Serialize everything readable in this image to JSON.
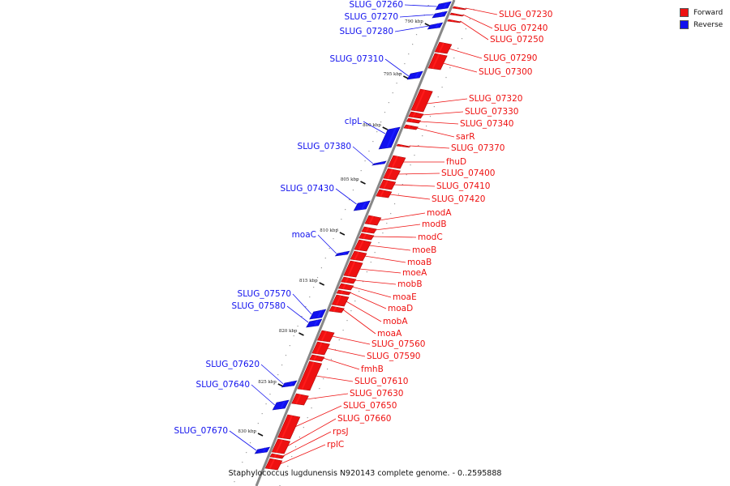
{
  "legend": {
    "forward_label": "Forward",
    "reverse_label": "Reverse",
    "forward_color": "#ee1111",
    "reverse_color": "#1111ee"
  },
  "caption": "Staphylococcus lugdunensis N920143 complete genome. - 0..2595888",
  "kbp_marks": [
    "790 kbp",
    "795 kbp",
    "800 kbp",
    "805 kbp",
    "810 kbp",
    "815 kbp",
    "820 kbp",
    "825 kbp",
    "830 kbp"
  ],
  "genes": [
    {
      "name": "SLUG_07230",
      "strand": "forward"
    },
    {
      "name": "SLUG_07240",
      "strand": "forward"
    },
    {
      "name": "SLUG_07250",
      "strand": "forward"
    },
    {
      "name": "SLUG_07260",
      "strand": "reverse"
    },
    {
      "name": "SLUG_07270",
      "strand": "reverse"
    },
    {
      "name": "SLUG_07280",
      "strand": "reverse"
    },
    {
      "name": "SLUG_07290",
      "strand": "forward"
    },
    {
      "name": "SLUG_07300",
      "strand": "forward"
    },
    {
      "name": "SLUG_07310",
      "strand": "reverse"
    },
    {
      "name": "SLUG_07320",
      "strand": "forward"
    },
    {
      "name": "SLUG_07330",
      "strand": "forward"
    },
    {
      "name": "SLUG_07340",
      "strand": "forward"
    },
    {
      "name": "clpL",
      "strand": "reverse"
    },
    {
      "name": "sarR",
      "strand": "forward"
    },
    {
      "name": "SLUG_07370",
      "strand": "forward"
    },
    {
      "name": "SLUG_07380",
      "strand": "reverse"
    },
    {
      "name": "fhuD",
      "strand": "forward"
    },
    {
      "name": "SLUG_07400",
      "strand": "forward"
    },
    {
      "name": "SLUG_07410",
      "strand": "forward"
    },
    {
      "name": "SLUG_07420",
      "strand": "forward"
    },
    {
      "name": "SLUG_07430",
      "strand": "reverse"
    },
    {
      "name": "modA",
      "strand": "forward"
    },
    {
      "name": "modB",
      "strand": "forward"
    },
    {
      "name": "modC",
      "strand": "forward"
    },
    {
      "name": "moaC",
      "strand": "reverse"
    },
    {
      "name": "moeB",
      "strand": "forward"
    },
    {
      "name": "moaB",
      "strand": "forward"
    },
    {
      "name": "moeA",
      "strand": "forward"
    },
    {
      "name": "mobB",
      "strand": "forward"
    },
    {
      "name": "moaE",
      "strand": "forward"
    },
    {
      "name": "moaD",
      "strand": "forward"
    },
    {
      "name": "SLUG_07570",
      "strand": "reverse"
    },
    {
      "name": "SLUG_07580",
      "strand": "reverse"
    },
    {
      "name": "mobA",
      "strand": "forward"
    },
    {
      "name": "moaA",
      "strand": "forward"
    },
    {
      "name": "SLUG_07560",
      "strand": "forward"
    },
    {
      "name": "SLUG_07590",
      "strand": "forward"
    },
    {
      "name": "fmhB",
      "strand": "forward"
    },
    {
      "name": "SLUG_07610",
      "strand": "forward"
    },
    {
      "name": "SLUG_07620",
      "strand": "reverse"
    },
    {
      "name": "SLUG_07630",
      "strand": "forward"
    },
    {
      "name": "SLUG_07640",
      "strand": "reverse"
    },
    {
      "name": "SLUG_07650",
      "strand": "forward"
    },
    {
      "name": "SLUG_07660",
      "strand": "forward"
    },
    {
      "name": "SLUG_07670",
      "strand": "reverse"
    },
    {
      "name": "rpsJ",
      "strand": "forward"
    },
    {
      "name": "rplC",
      "strand": "forward"
    }
  ]
}
